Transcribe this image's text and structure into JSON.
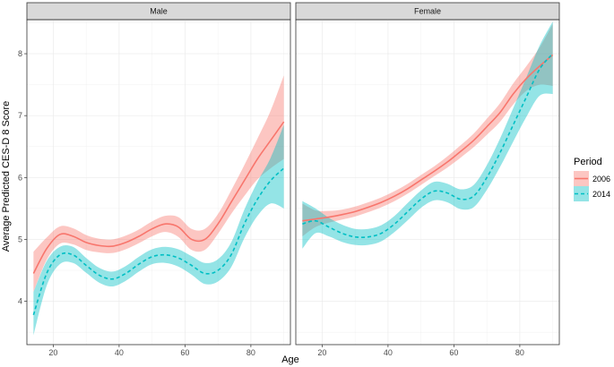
{
  "chart_data": {
    "type": "line",
    "xlabel": "Age",
    "ylabel": "Average Predicted CES-D 8 Score",
    "xlim": [
      12,
      92
    ],
    "ylim": [
      3.3,
      8.55
    ],
    "xticks": [
      20,
      40,
      60,
      80
    ],
    "yticks": [
      4,
      5,
      6,
      7,
      8
    ],
    "grid": true,
    "legend": {
      "title": "Period",
      "position": "right",
      "entries": [
        "2006",
        "2014"
      ]
    },
    "colors": {
      "2006": "#F8766D",
      "2014": "#00BFC4"
    },
    "panels": [
      {
        "label": "Male",
        "series": [
          {
            "name": "2006",
            "x": [
              14,
              18,
              22,
              26,
              30,
              34,
              38,
              42,
              46,
              50,
              54,
              58,
              62,
              66,
              70,
              74,
              78,
              82,
              86,
              90
            ],
            "y": [
              4.45,
              4.85,
              5.08,
              5.05,
              4.95,
              4.9,
              4.89,
              4.95,
              5.05,
              5.17,
              5.25,
              5.2,
              5.0,
              5.0,
              5.25,
              5.6,
              5.95,
              6.3,
              6.6,
              6.9
            ],
            "lower": [
              4.15,
              4.67,
              4.93,
              4.92,
              4.83,
              4.79,
              4.78,
              4.84,
              4.94,
              5.05,
              5.12,
              5.04,
              4.83,
              4.83,
              5.09,
              5.41,
              5.7,
              5.97,
              6.15,
              6.3
            ],
            "upper": [
              4.8,
              5.03,
              5.21,
              5.18,
              5.07,
              5.01,
              5.0,
              5.06,
              5.16,
              5.29,
              5.38,
              5.36,
              5.17,
              5.17,
              5.41,
              5.79,
              6.2,
              6.63,
              7.08,
              7.65
            ]
          },
          {
            "name": "2014",
            "x": [
              14,
              18,
              22,
              26,
              30,
              34,
              38,
              42,
              46,
              50,
              54,
              58,
              62,
              66,
              70,
              74,
              78,
              82,
              86,
              90
            ],
            "y": [
              3.78,
              4.45,
              4.75,
              4.75,
              4.58,
              4.42,
              4.36,
              4.45,
              4.6,
              4.72,
              4.75,
              4.7,
              4.58,
              4.45,
              4.5,
              4.75,
              5.25,
              5.65,
              5.95,
              6.15
            ],
            "lower": [
              3.45,
              4.25,
              4.6,
              4.62,
              4.46,
              4.3,
              4.24,
              4.33,
              4.48,
              4.6,
              4.62,
              4.56,
              4.43,
              4.28,
              4.32,
              4.55,
              5.02,
              5.38,
              5.58,
              5.5
            ],
            "upper": [
              4.15,
              4.65,
              4.88,
              4.88,
              4.7,
              4.54,
              4.48,
              4.57,
              4.72,
              4.84,
              4.88,
              4.84,
              4.73,
              4.62,
              4.68,
              4.95,
              5.48,
              5.93,
              6.32,
              6.85
            ]
          }
        ]
      },
      {
        "label": "Female",
        "series": [
          {
            "name": "2006",
            "x": [
              14,
              18,
              22,
              26,
              30,
              34,
              38,
              42,
              46,
              50,
              54,
              58,
              62,
              66,
              70,
              74,
              78,
              82,
              86,
              90
            ],
            "y": [
              5.3,
              5.33,
              5.36,
              5.4,
              5.45,
              5.52,
              5.6,
              5.7,
              5.82,
              5.96,
              6.1,
              6.25,
              6.42,
              6.6,
              6.82,
              7.05,
              7.35,
              7.6,
              7.8,
              7.98
            ],
            "lower": [
              5.05,
              5.2,
              5.27,
              5.32,
              5.37,
              5.44,
              5.52,
              5.62,
              5.74,
              5.88,
              6.02,
              6.16,
              6.32,
              6.49,
              6.69,
              6.9,
              7.18,
              7.4,
              7.5,
              7.48
            ],
            "upper": [
              5.58,
              5.47,
              5.46,
              5.48,
              5.53,
              5.6,
              5.68,
              5.78,
              5.9,
              6.04,
              6.18,
              6.34,
              6.52,
              6.71,
              6.95,
              7.2,
              7.52,
              7.8,
              8.1,
              8.48
            ]
          },
          {
            "name": "2014",
            "x": [
              14,
              18,
              22,
              26,
              30,
              34,
              38,
              42,
              46,
              50,
              54,
              58,
              62,
              66,
              70,
              74,
              78,
              82,
              86,
              90
            ],
            "y": [
              5.25,
              5.3,
              5.2,
              5.1,
              5.04,
              5.04,
              5.1,
              5.25,
              5.45,
              5.65,
              5.78,
              5.75,
              5.65,
              5.7,
              6.0,
              6.4,
              6.85,
              7.3,
              7.75,
              8.0
            ],
            "lower": [
              4.85,
              5.1,
              5.05,
              4.96,
              4.91,
              4.91,
              4.97,
              5.12,
              5.31,
              5.51,
              5.63,
              5.6,
              5.49,
              5.52,
              5.8,
              6.17,
              6.58,
              6.98,
              7.32,
              7.35
            ],
            "upper": [
              5.62,
              5.5,
              5.35,
              5.24,
              5.17,
              5.17,
              5.23,
              5.38,
              5.59,
              5.79,
              5.93,
              5.9,
              5.81,
              5.88,
              6.2,
              6.63,
              7.12,
              7.62,
              8.13,
              8.52
            ]
          }
        ]
      }
    ]
  }
}
